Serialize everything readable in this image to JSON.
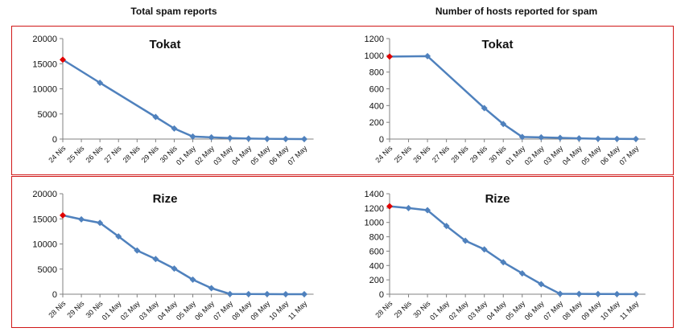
{
  "headers": {
    "left": "Total spam reports",
    "right": "Number of hosts reported for spam"
  },
  "colors": {
    "line": "#4f81bd",
    "marker": "#4f81bd",
    "first_marker": "#e00000",
    "panel_border": "#d01818",
    "axis": "#808080"
  },
  "chart_data": [
    {
      "type": "line",
      "title": "Tokat",
      "panel": "top-left",
      "categories": [
        "24 Nis",
        "25 Nis",
        "26 Nis",
        "27 Nis",
        "28 Nis",
        "29 Nis",
        "30 Nis",
        "01 May",
        "02 May",
        "03 May",
        "04 May",
        "05 May",
        "06 May",
        "07 May"
      ],
      "points": [
        {
          "x": "24 Nis",
          "y": 15800
        },
        {
          "x": "26 Nis",
          "y": 11200
        },
        {
          "x": "29 Nis",
          "y": 4400
        },
        {
          "x": "30 Nis",
          "y": 2100
        },
        {
          "x": "01 May",
          "y": 500
        },
        {
          "x": "02 May",
          "y": 350
        },
        {
          "x": "03 May",
          "y": 200
        },
        {
          "x": "04 May",
          "y": 100
        },
        {
          "x": "05 May",
          "y": 50
        },
        {
          "x": "06 May",
          "y": 20
        },
        {
          "x": "07 May",
          "y": 10
        }
      ],
      "ylim": [
        0,
        20000
      ],
      "yticks": [
        0,
        5000,
        10000,
        15000,
        20000
      ],
      "highlight_first": true,
      "grid": false,
      "legend": "none"
    },
    {
      "type": "line",
      "title": "Tokat",
      "panel": "top-right",
      "categories": [
        "24 Nis",
        "25 Nis",
        "26 Nis",
        "27 Nis",
        "28 Nis",
        "29 Nis",
        "30 Nis",
        "01 May",
        "02 May",
        "03 May",
        "04 May",
        "05 May",
        "06 May",
        "07 May"
      ],
      "points": [
        {
          "x": "24 Nis",
          "y": 985
        },
        {
          "x": "26 Nis",
          "y": 990
        },
        {
          "x": "29 Nis",
          "y": 370
        },
        {
          "x": "30 Nis",
          "y": 180
        },
        {
          "x": "01 May",
          "y": 25
        },
        {
          "x": "02 May",
          "y": 20
        },
        {
          "x": "03 May",
          "y": 15
        },
        {
          "x": "04 May",
          "y": 8
        },
        {
          "x": "05 May",
          "y": 4
        },
        {
          "x": "06 May",
          "y": 2
        },
        {
          "x": "07 May",
          "y": 1
        }
      ],
      "ylim": [
        0,
        1200
      ],
      "yticks": [
        0,
        200,
        400,
        600,
        800,
        1000,
        1200
      ],
      "highlight_first": true,
      "grid": false,
      "legend": "none"
    },
    {
      "type": "line",
      "title": "Rize",
      "panel": "bottom-left",
      "categories": [
        "28 Nis",
        "29 Nis",
        "30 Nis",
        "01 May",
        "02 May",
        "03 May",
        "04 May",
        "05 May",
        "06 May",
        "07 May",
        "08 May",
        "09 May",
        "10 May",
        "11 May"
      ],
      "points": [
        {
          "x": "28 Nis",
          "y": 15700
        },
        {
          "x": "29 Nis",
          "y": 14900
        },
        {
          "x": "30 Nis",
          "y": 14200
        },
        {
          "x": "01 May",
          "y": 11500
        },
        {
          "x": "02 May",
          "y": 8700
        },
        {
          "x": "03 May",
          "y": 7000
        },
        {
          "x": "04 May",
          "y": 5100
        },
        {
          "x": "05 May",
          "y": 2900
        },
        {
          "x": "06 May",
          "y": 1200
        },
        {
          "x": "07 May",
          "y": 50
        },
        {
          "x": "08 May",
          "y": 30
        },
        {
          "x": "09 May",
          "y": 20
        },
        {
          "x": "10 May",
          "y": 10
        },
        {
          "x": "11 May",
          "y": 5
        }
      ],
      "ylim": [
        0,
        20000
      ],
      "yticks": [
        0,
        5000,
        10000,
        15000,
        20000
      ],
      "highlight_first": true,
      "grid": false,
      "legend": "none"
    },
    {
      "type": "line",
      "title": "Rize",
      "panel": "bottom-right",
      "categories": [
        "28 Nis",
        "29 Nis",
        "30 Nis",
        "01 May",
        "02 May",
        "03 May",
        "04 May",
        "05 May",
        "06 May",
        "07 May",
        "08 May",
        "09 May",
        "10 May",
        "11 May"
      ],
      "points": [
        {
          "x": "28 Nis",
          "y": 1225
        },
        {
          "x": "29 Nis",
          "y": 1200
        },
        {
          "x": "30 Nis",
          "y": 1170
        },
        {
          "x": "01 May",
          "y": 950
        },
        {
          "x": "02 May",
          "y": 745
        },
        {
          "x": "03 May",
          "y": 625
        },
        {
          "x": "04 May",
          "y": 445
        },
        {
          "x": "05 May",
          "y": 290
        },
        {
          "x": "06 May",
          "y": 140
        },
        {
          "x": "07 May",
          "y": 5
        },
        {
          "x": "08 May",
          "y": 4
        },
        {
          "x": "09 May",
          "y": 3
        },
        {
          "x": "10 May",
          "y": 2
        },
        {
          "x": "11 May",
          "y": 1
        }
      ],
      "ylim": [
        0,
        1400
      ],
      "yticks": [
        0,
        200,
        400,
        600,
        800,
        1000,
        1200,
        1400
      ],
      "highlight_first": true,
      "grid": false,
      "legend": "none"
    }
  ]
}
